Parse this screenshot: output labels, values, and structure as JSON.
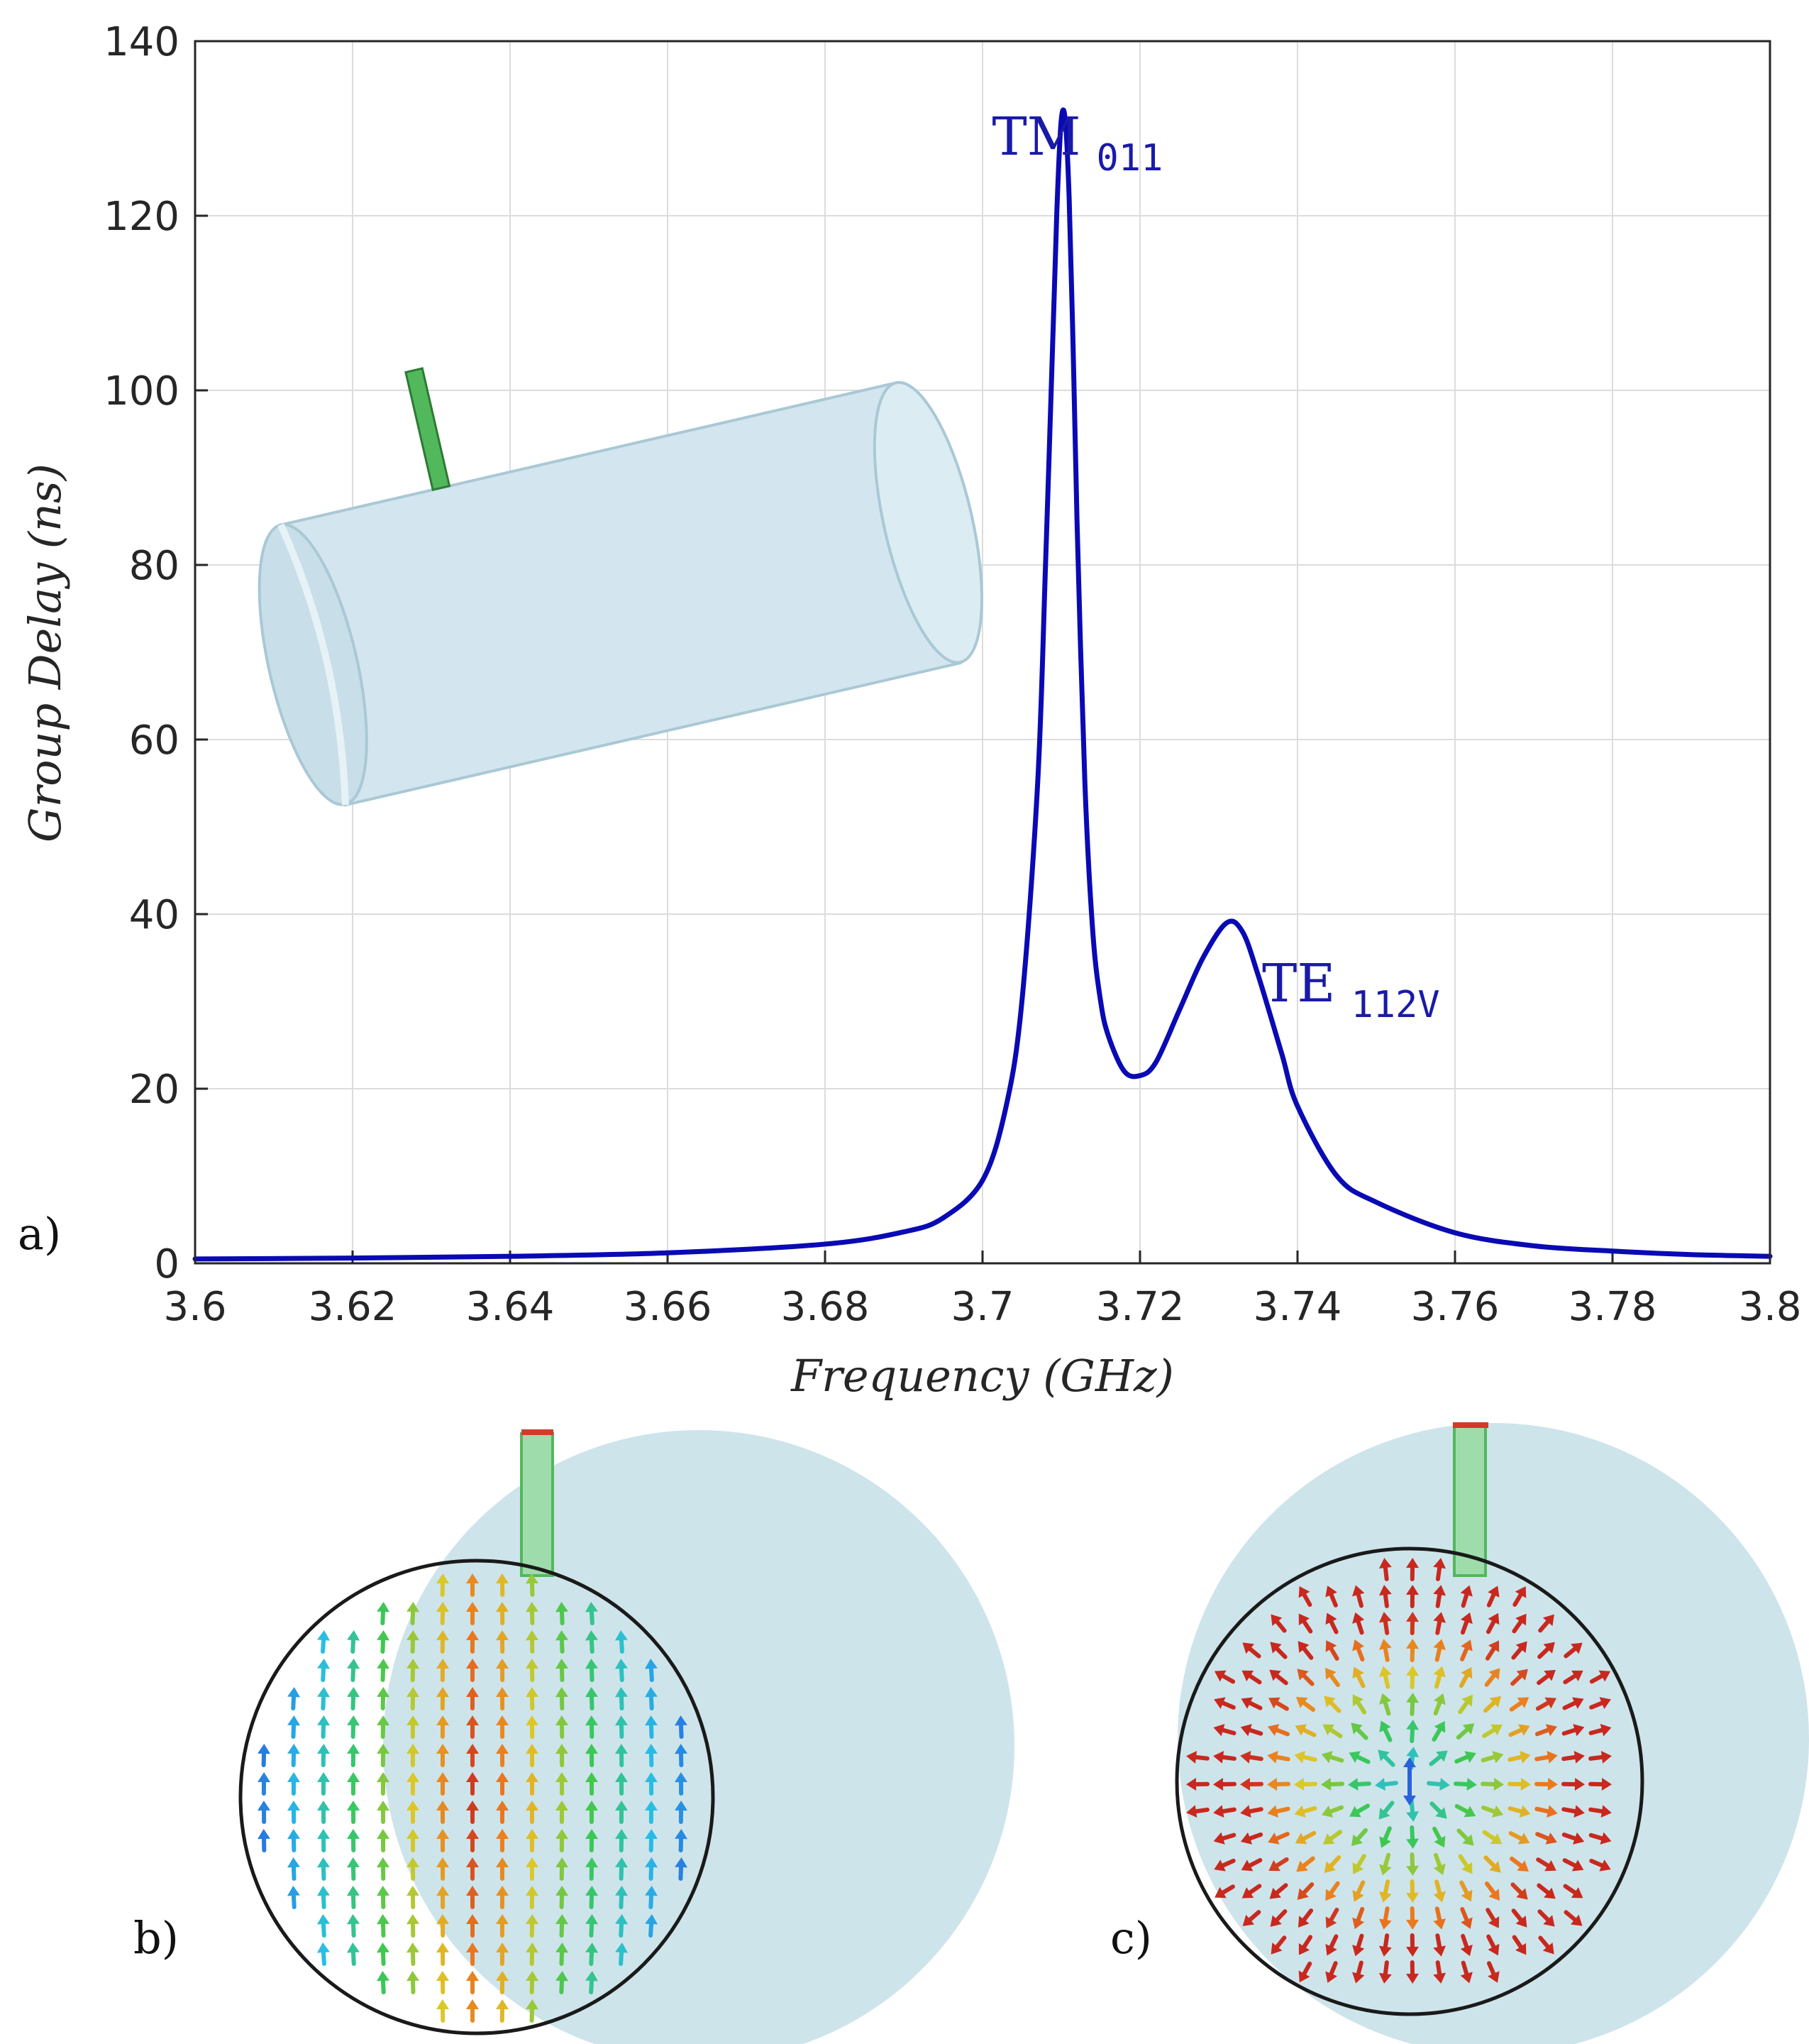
{
  "chart_data": {
    "type": "line",
    "xlabel": "Frequency (GHz)",
    "ylabel": "Group Delay (ns)",
    "xlim": [
      3.6,
      3.8
    ],
    "ylim": [
      0,
      140
    ],
    "x_ticks": [
      3.6,
      3.62,
      3.64,
      3.66,
      3.68,
      3.7,
      3.72,
      3.74,
      3.76,
      3.78,
      3.8
    ],
    "x_tick_labels": [
      "3.6",
      "3.62",
      "3.64",
      "3.66",
      "3.68",
      "3.7",
      "3.72",
      "3.74",
      "3.76",
      "3.78",
      "3.8"
    ],
    "y_ticks": [
      0,
      20,
      40,
      60,
      80,
      100,
      120,
      140
    ],
    "y_tick_labels": [
      "0",
      "20",
      "40",
      "60",
      "80",
      "100",
      "120",
      "140"
    ],
    "grid": true,
    "line_color": "#0a0ab4",
    "series": [
      {
        "x": [
          3.6,
          3.62,
          3.64,
          3.66,
          3.68,
          3.69,
          3.695,
          3.7,
          3.703,
          3.705,
          3.707,
          3.708,
          3.709,
          3.7095,
          3.71,
          3.7105,
          3.711,
          3.7115,
          3.712,
          3.713,
          3.714,
          3.715,
          3.716,
          3.718,
          3.72,
          3.722,
          3.725,
          3.728,
          3.731,
          3.733,
          3.735,
          3.738,
          3.74,
          3.745,
          3.75,
          3.76,
          3.77,
          3.78,
          3.79,
          3.8
        ],
        "y": [
          0.5,
          0.6,
          0.8,
          1.2,
          2.2,
          3.6,
          5.2,
          9.5,
          18,
          30,
          55,
          80,
          108,
          122,
          131,
          131,
          122,
          105,
          85,
          55,
          38,
          30,
          26,
          22,
          21.5,
          23,
          29,
          35,
          39,
          38,
          33,
          24,
          18,
          10,
          7,
          3.5,
          2,
          1.4,
          1,
          0.8
        ]
      }
    ],
    "annotations": [
      {
        "text": "TM",
        "subscript": "011",
        "x": 3.7012,
        "y": 127
      },
      {
        "text": "TE",
        "subscript": "112V",
        "x": 3.7355,
        "y": 30
      }
    ]
  },
  "panel_labels": {
    "a": "a)",
    "b": "b)",
    "c": "c)"
  },
  "colors": {
    "cavity_fill": "#d3e6ef",
    "cavity_shadow": "#b8d3de",
    "probe": "#52b85c",
    "probe_tip": "#d23a2a",
    "circle_outline": "#1a1a1a"
  }
}
